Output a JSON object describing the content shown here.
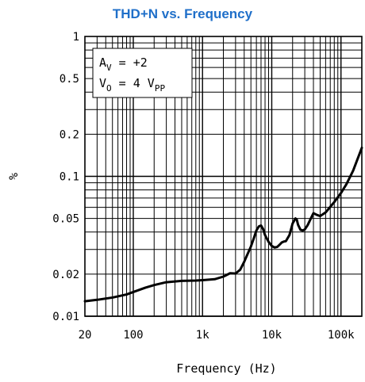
{
  "chart_data": {
    "type": "line",
    "title": "THD+N vs. Frequency",
    "title_color": "#1f6fc9",
    "xlabel": "Frequency (Hz)",
    "ylabel": "%",
    "x_scale": "log",
    "y_scale": "log",
    "xlim": [
      20,
      200000
    ],
    "ylim": [
      0.01,
      1
    ],
    "grid": true,
    "x_ticks": [
      {
        "value": 20,
        "label": "20"
      },
      {
        "value": 100,
        "label": "100"
      },
      {
        "value": 1000,
        "label": "1k"
      },
      {
        "value": 10000,
        "label": "10k"
      },
      {
        "value": 100000,
        "label": "100k"
      }
    ],
    "y_ticks": [
      {
        "value": 1,
        "label": "1"
      },
      {
        "value": 0.5,
        "label": "0.5"
      },
      {
        "value": 0.2,
        "label": "0.2"
      },
      {
        "value": 0.1,
        "label": "0.1"
      },
      {
        "value": 0.05,
        "label": "0.05"
      },
      {
        "value": 0.02,
        "label": "0.02"
      },
      {
        "value": 0.01,
        "label": "0.01"
      }
    ],
    "legend": {
      "placement": "top-left",
      "line1": {
        "main": "A",
        "sub": "V",
        "rest": " = +2"
      },
      "line2": {
        "main": "V",
        "sub": "O",
        "mid": " = 4 V",
        "sub2": "PP"
      }
    },
    "series": [
      {
        "x": [
          20,
          30,
          50,
          80,
          100,
          150,
          200,
          300,
          500,
          800,
          1000,
          1500,
          2000,
          2500,
          3000,
          3500,
          4000,
          4500,
          5000,
          5500,
          6000,
          6500,
          7000,
          7500,
          8000,
          9000,
          10000,
          11000,
          12000,
          13000,
          14000,
          15000,
          16000,
          18000,
          20000,
          22000,
          23000,
          24000,
          26000,
          28000,
          30000,
          33000,
          36000,
          40000,
          45000,
          50000,
          60000,
          70000,
          80000,
          100000,
          120000,
          150000,
          200000
        ],
        "y": [
          0.0128,
          0.0131,
          0.0136,
          0.0143,
          0.0149,
          0.016,
          0.0167,
          0.0175,
          0.0179,
          0.018,
          0.0181,
          0.0184,
          0.0192,
          0.0203,
          0.0202,
          0.0215,
          0.0245,
          0.028,
          0.0315,
          0.036,
          0.041,
          0.0438,
          0.0445,
          0.042,
          0.038,
          0.034,
          0.0318,
          0.031,
          0.0313,
          0.0325,
          0.0337,
          0.0342,
          0.0344,
          0.038,
          0.046,
          0.05,
          0.049,
          0.045,
          0.0415,
          0.041,
          0.0417,
          0.0448,
          0.049,
          0.0545,
          0.053,
          0.052,
          0.0552,
          0.0605,
          0.0655,
          0.076,
          0.088,
          0.11,
          0.16
        ]
      }
    ]
  }
}
